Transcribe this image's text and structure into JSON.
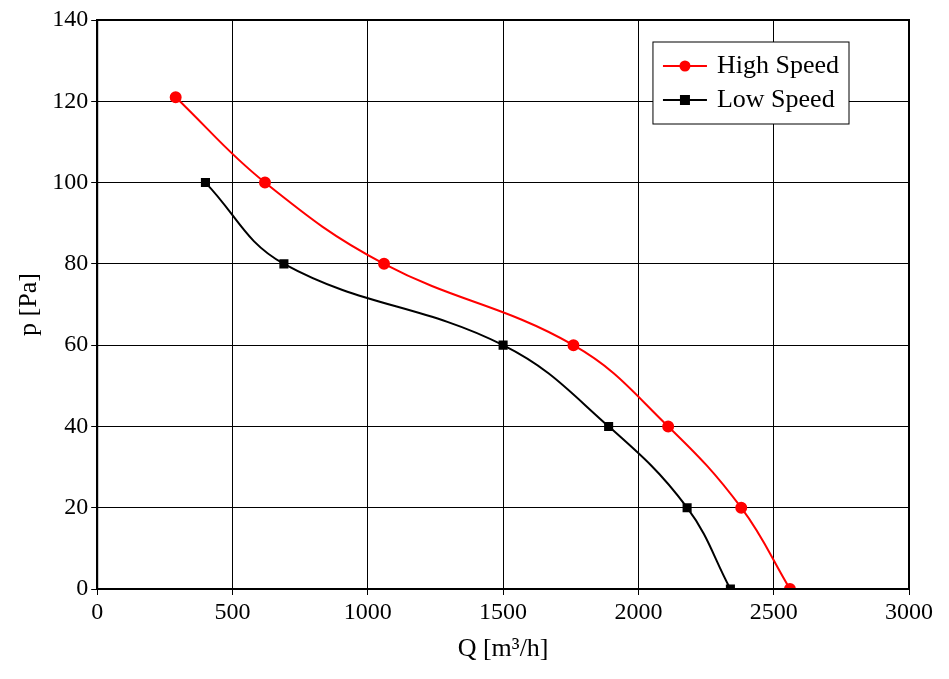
{
  "chart_data": {
    "type": "line",
    "x_label": "Q [m³/h]",
    "y_label": "p [Pa]",
    "series": [
      {
        "name": "High Speed",
        "color": "#ff0000",
        "marker": "circle",
        "line_style": "solid",
        "x": [
          290,
          620,
          1060,
          1760,
          2110,
          2380,
          2560
        ],
        "values": [
          121,
          100,
          80,
          60,
          40,
          20,
          0
        ]
      },
      {
        "name": "Low Speed",
        "color": "#000000",
        "marker": "square",
        "line_style": "solid",
        "x": [
          400,
          690,
          1500,
          1890,
          2180,
          2340
        ],
        "values": [
          100,
          80,
          60,
          40,
          20,
          0
        ]
      }
    ],
    "xlim": [
      0,
      3000
    ],
    "xticks": [
      0,
      500,
      1000,
      1500,
      2000,
      2500,
      3000
    ],
    "ylim": [
      0,
      140
    ],
    "yticks": [
      0,
      20,
      40,
      60,
      80,
      100,
      120,
      140
    ],
    "grid": true,
    "legend": "upper right"
  }
}
